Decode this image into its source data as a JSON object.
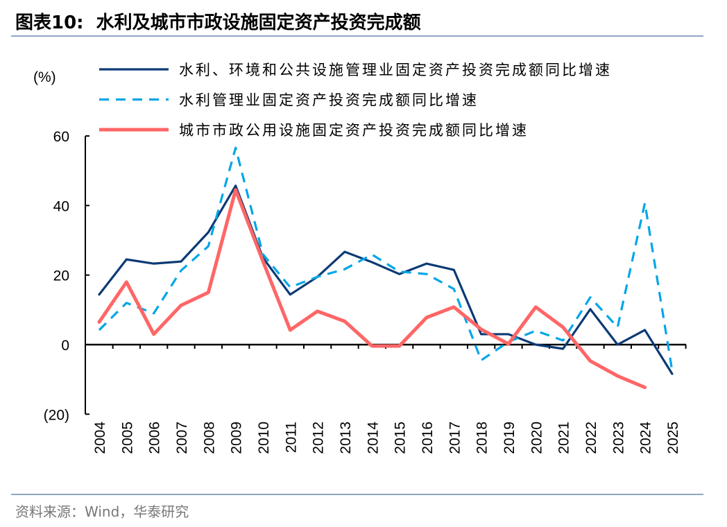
{
  "title": "图表10:  水利及城市市政设施固定资产投资完成额",
  "source": "资料来源：Wind，华泰研究",
  "chart_data": {
    "type": "line",
    "title": "水利及城市市政设施固定资产投资完成额",
    "ylabel": "(%)",
    "xlabel": "",
    "ylim": [
      -20,
      60
    ],
    "yticks": [
      -20,
      0,
      20,
      40,
      60
    ],
    "ytick_labels": [
      "(20)",
      "0",
      "20",
      "40",
      "60"
    ],
    "grid": false,
    "legend_position": "top",
    "categories": [
      "2004",
      "2005",
      "2006",
      "2007",
      "2008",
      "2009",
      "2010",
      "2011",
      "2012",
      "2013",
      "2014",
      "2015",
      "2016",
      "2017",
      "2018",
      "2019",
      "2020",
      "2021",
      "2022",
      "2023",
      "2024",
      "2025"
    ],
    "series": [
      {
        "name": "水利、环境和公共设施管理业固定资产投资完成额同比增速",
        "color": "#0b3a75",
        "style": "solid",
        "values": [
          14.4,
          24.5,
          23.3,
          23.9,
          32.3,
          45.7,
          25,
          14.4,
          19.5,
          26.7,
          23.7,
          20.3,
          23.3,
          21.5,
          3,
          3,
          0,
          -1.2,
          10.2,
          0,
          4.2,
          -8.4
        ]
      },
      {
        "name": "水利管理业固定资产投资完成额同比增速",
        "color": "#00a6e6",
        "style": "dashed",
        "values": [
          4.2,
          12,
          9,
          21.3,
          28.3,
          56.6,
          26,
          16.5,
          19.5,
          21.7,
          25.9,
          21,
          20.3,
          16,
          -4.5,
          0.8,
          4,
          1.2,
          13.6,
          5,
          40.7,
          -7.5
        ]
      },
      {
        "name": "城市市政公用设施固定资产投资完成额同比增速",
        "color": "#ff6666",
        "style": "solid",
        "values": [
          6.5,
          18,
          3,
          11.3,
          15,
          44.5,
          24,
          4.2,
          9.6,
          6.7,
          -0.4,
          -0.4,
          7.8,
          10.8,
          4.4,
          0.2,
          10.8,
          5,
          -4.7,
          -9,
          -12.3,
          null
        ]
      }
    ]
  }
}
